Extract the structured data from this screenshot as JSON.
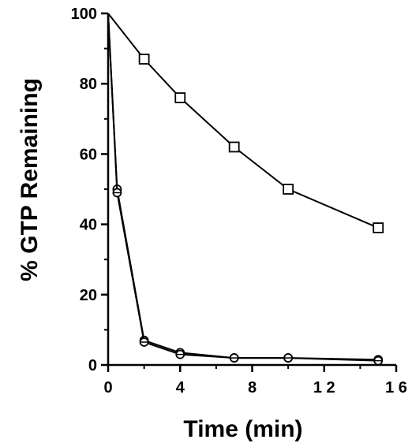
{
  "chart_data": {
    "type": "line",
    "title": "",
    "xlabel": "Time (min)",
    "ylabel": "% GTP Remaining",
    "xlim": [
      0,
      16
    ],
    "ylim": [
      0,
      100
    ],
    "xticks": [
      0,
      4,
      8,
      12,
      16
    ],
    "xtick_labels": [
      "0",
      "4",
      "8",
      "1 2",
      "1 6"
    ],
    "yticks": [
      0,
      20,
      40,
      60,
      80,
      100
    ],
    "ytick_labels": [
      "0",
      "20",
      "40",
      "60",
      "80",
      "100"
    ],
    "grid": false,
    "legend": "none",
    "series": [
      {
        "marker": "square",
        "x": [
          0,
          2,
          4,
          7,
          10,
          15
        ],
        "y": [
          100,
          87,
          76,
          62,
          50,
          39
        ]
      },
      {
        "marker": "open-circle",
        "x": [
          0,
          0.5,
          2,
          4,
          7,
          10,
          15
        ],
        "y": [
          100,
          50,
          7,
          3.5,
          2,
          2,
          1.5
        ]
      },
      {
        "marker": "crossed-circle",
        "x": [
          0,
          0.5,
          2,
          4,
          7,
          10,
          15
        ],
        "y": [
          100,
          49,
          6.5,
          3,
          2,
          2,
          1.2
        ]
      }
    ]
  }
}
